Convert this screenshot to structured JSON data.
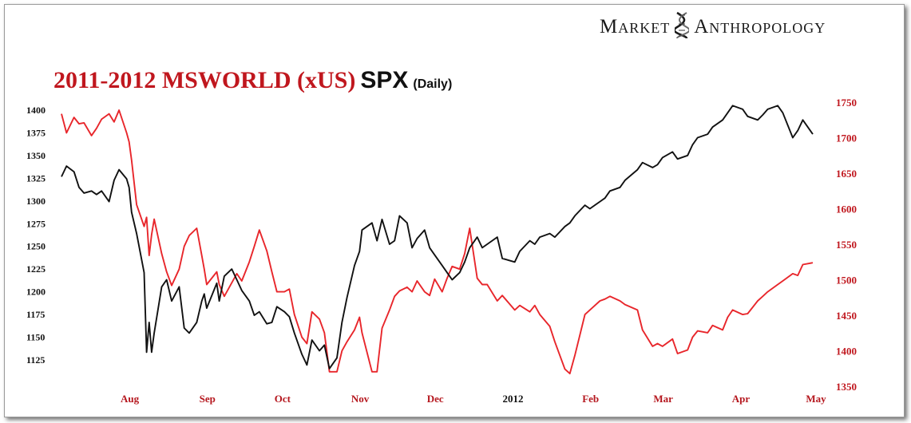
{
  "branding": {
    "word1": "Market",
    "word2": "Anthropology",
    "icon": "dna-helix-icon"
  },
  "title": {
    "red": "2011-2012 MSWORLD (xUS)",
    "black": "SPX",
    "small": "(Daily)"
  },
  "colors": {
    "msworld": "#e8262b",
    "spx": "#111111",
    "accent_red": "#c0171e"
  },
  "chart_data": {
    "type": "line",
    "title": "2011-2012 MSWORLD (xUS) SPX (Daily)",
    "x_range": [
      "2011-07-06",
      "2012-05-01"
    ],
    "x_tick_labels": [
      {
        "label": "Aug",
        "date": "2011-08-01"
      },
      {
        "label": "Sep",
        "date": "2011-09-01"
      },
      {
        "label": "Oct",
        "date": "2011-10-01"
      },
      {
        "label": "Nov",
        "date": "2011-11-01"
      },
      {
        "label": "Dec",
        "date": "2011-12-01"
      },
      {
        "label": "2012",
        "date": "2012-01-01"
      },
      {
        "label": "Feb",
        "date": "2012-02-01"
      },
      {
        "label": "Mar",
        "date": "2012-03-01"
      },
      {
        "label": "Apr",
        "date": "2012-04-01"
      },
      {
        "label": "May",
        "date": "2012-05-01"
      }
    ],
    "y_left": {
      "series": "MSWORLD (xUS)",
      "range": [
        1100,
        1420
      ],
      "ticks": [
        1125,
        1150,
        1175,
        1200,
        1225,
        1250,
        1275,
        1300,
        1325,
        1350,
        1375,
        1400
      ]
    },
    "y_right": {
      "series": "SPX",
      "range": [
        1340,
        1760
      ],
      "ticks": [
        1350,
        1400,
        1450,
        1500,
        1550,
        1600,
        1650,
        1700,
        1750
      ]
    },
    "grid": false,
    "legend": "none",
    "series": [
      {
        "name": "MSWORLD (xUS)",
        "axis": "left",
        "color": "#e8262b",
        "points": [
          [
            "2011-07-06",
            1396
          ],
          [
            "2011-07-08",
            1375
          ],
          [
            "2011-07-11",
            1392
          ],
          [
            "2011-07-13",
            1385
          ],
          [
            "2011-07-15",
            1386
          ],
          [
            "2011-07-18",
            1372
          ],
          [
            "2011-07-20",
            1380
          ],
          [
            "2011-07-22",
            1390
          ],
          [
            "2011-07-25",
            1396
          ],
          [
            "2011-07-27",
            1387
          ],
          [
            "2011-07-29",
            1400
          ],
          [
            "2011-08-01",
            1375
          ],
          [
            "2011-08-02",
            1365
          ],
          [
            "2011-08-03",
            1345
          ],
          [
            "2011-08-05",
            1296
          ],
          [
            "2011-08-08",
            1272
          ],
          [
            "2011-08-09",
            1282
          ],
          [
            "2011-08-10",
            1240
          ],
          [
            "2011-08-11",
            1263
          ],
          [
            "2011-08-12",
            1280
          ],
          [
            "2011-08-15",
            1242
          ],
          [
            "2011-08-17",
            1222
          ],
          [
            "2011-08-19",
            1207
          ],
          [
            "2011-08-22",
            1225
          ],
          [
            "2011-08-24",
            1250
          ],
          [
            "2011-08-26",
            1262
          ],
          [
            "2011-08-29",
            1270
          ],
          [
            "2011-08-31",
            1240
          ],
          [
            "2011-09-01",
            1225
          ],
          [
            "2011-09-02",
            1208
          ],
          [
            "2011-09-06",
            1222
          ],
          [
            "2011-09-07",
            1208
          ],
          [
            "2011-09-09",
            1195
          ],
          [
            "2011-09-12",
            1210
          ],
          [
            "2011-09-14",
            1220
          ],
          [
            "2011-09-16",
            1212
          ],
          [
            "2011-09-19",
            1233
          ],
          [
            "2011-09-21",
            1250
          ],
          [
            "2011-09-23",
            1268
          ],
          [
            "2011-09-26",
            1245
          ],
          [
            "2011-09-28",
            1222
          ],
          [
            "2011-09-30",
            1200
          ],
          [
            "2011-10-03",
            1200
          ],
          [
            "2011-10-05",
            1203
          ],
          [
            "2011-10-07",
            1175
          ],
          [
            "2011-10-10",
            1150
          ],
          [
            "2011-10-12",
            1143
          ],
          [
            "2011-10-14",
            1178
          ],
          [
            "2011-10-17",
            1170
          ],
          [
            "2011-10-19",
            1155
          ],
          [
            "2011-10-21",
            1112
          ],
          [
            "2011-10-24",
            1112
          ],
          [
            "2011-10-26",
            1135
          ],
          [
            "2011-10-28",
            1145
          ],
          [
            "2011-10-31",
            1158
          ],
          [
            "2011-11-02",
            1172
          ],
          [
            "2011-11-03",
            1155
          ],
          [
            "2011-11-07",
            1112
          ],
          [
            "2011-11-09",
            1112
          ],
          [
            "2011-11-11",
            1160
          ],
          [
            "2011-11-14",
            1180
          ],
          [
            "2011-11-16",
            1195
          ],
          [
            "2011-11-18",
            1201
          ],
          [
            "2011-11-21",
            1205
          ],
          [
            "2011-11-23",
            1200
          ],
          [
            "2011-11-25",
            1212
          ],
          [
            "2011-11-28",
            1200
          ],
          [
            "2011-11-30",
            1196
          ],
          [
            "2011-12-02",
            1214
          ],
          [
            "2011-12-05",
            1200
          ],
          [
            "2011-12-07",
            1215
          ],
          [
            "2011-12-09",
            1228
          ],
          [
            "2011-12-12",
            1225
          ],
          [
            "2011-12-14",
            1242
          ],
          [
            "2011-12-16",
            1270
          ],
          [
            "2011-12-19",
            1215
          ],
          [
            "2011-12-21",
            1208
          ],
          [
            "2011-12-23",
            1208
          ],
          [
            "2011-12-27",
            1190
          ],
          [
            "2011-12-29",
            1196
          ],
          [
            "2012-01-03",
            1180
          ],
          [
            "2012-01-05",
            1185
          ],
          [
            "2012-01-09",
            1178
          ],
          [
            "2012-01-11",
            1185
          ],
          [
            "2012-01-13",
            1175
          ],
          [
            "2012-01-17",
            1162
          ],
          [
            "2012-01-19",
            1145
          ],
          [
            "2012-01-23",
            1115
          ],
          [
            "2012-01-25",
            1110
          ],
          [
            "2012-01-27",
            1130
          ],
          [
            "2012-01-31",
            1175
          ],
          [
            "2012-02-02",
            1180
          ],
          [
            "2012-02-06",
            1190
          ],
          [
            "2012-02-08",
            1192
          ],
          [
            "2012-02-10",
            1195
          ],
          [
            "2012-02-14",
            1190
          ],
          [
            "2012-02-16",
            1186
          ],
          [
            "2012-02-21",
            1180
          ],
          [
            "2012-02-23",
            1158
          ],
          [
            "2012-02-27",
            1140
          ],
          [
            "2012-02-29",
            1143
          ],
          [
            "2012-03-02",
            1140
          ],
          [
            "2012-03-06",
            1148
          ],
          [
            "2012-03-08",
            1132
          ],
          [
            "2012-03-12",
            1136
          ],
          [
            "2012-03-14",
            1150
          ],
          [
            "2012-03-16",
            1157
          ],
          [
            "2012-03-20",
            1155
          ],
          [
            "2012-03-22",
            1163
          ],
          [
            "2012-03-26",
            1158
          ],
          [
            "2012-03-28",
            1172
          ],
          [
            "2012-03-30",
            1180
          ],
          [
            "2012-04-03",
            1175
          ],
          [
            "2012-04-05",
            1176
          ],
          [
            "2012-04-09",
            1190
          ],
          [
            "2012-04-11",
            1195
          ],
          [
            "2012-04-13",
            1200
          ],
          [
            "2012-04-17",
            1208
          ],
          [
            "2012-04-19",
            1212
          ],
          [
            "2012-04-23",
            1220
          ],
          [
            "2012-04-25",
            1218
          ],
          [
            "2012-04-27",
            1230
          ],
          [
            "2012-05-01",
            1232
          ]
        ]
      },
      {
        "name": "SPX",
        "axis": "right",
        "color": "#111111",
        "points": [
          [
            "2011-07-06",
            1645
          ],
          [
            "2011-07-08",
            1660
          ],
          [
            "2011-07-11",
            1652
          ],
          [
            "2011-07-13",
            1630
          ],
          [
            "2011-07-15",
            1622
          ],
          [
            "2011-07-18",
            1625
          ],
          [
            "2011-07-20",
            1620
          ],
          [
            "2011-07-22",
            1625
          ],
          [
            "2011-07-25",
            1610
          ],
          [
            "2011-07-27",
            1640
          ],
          [
            "2011-07-29",
            1655
          ],
          [
            "2011-08-01",
            1642
          ],
          [
            "2011-08-02",
            1630
          ],
          [
            "2011-08-03",
            1595
          ],
          [
            "2011-08-05",
            1565
          ],
          [
            "2011-08-08",
            1510
          ],
          [
            "2011-08-09",
            1398
          ],
          [
            "2011-08-10",
            1440
          ],
          [
            "2011-08-11",
            1398
          ],
          [
            "2011-08-12",
            1425
          ],
          [
            "2011-08-15",
            1490
          ],
          [
            "2011-08-17",
            1500
          ],
          [
            "2011-08-19",
            1470
          ],
          [
            "2011-08-22",
            1490
          ],
          [
            "2011-08-24",
            1432
          ],
          [
            "2011-08-26",
            1425
          ],
          [
            "2011-08-29",
            1440
          ],
          [
            "2011-08-31",
            1470
          ],
          [
            "2011-09-01",
            1480
          ],
          [
            "2011-09-02",
            1460
          ],
          [
            "2011-09-06",
            1495
          ],
          [
            "2011-09-07",
            1470
          ],
          [
            "2011-09-09",
            1505
          ],
          [
            "2011-09-12",
            1515
          ],
          [
            "2011-09-14",
            1500
          ],
          [
            "2011-09-16",
            1485
          ],
          [
            "2011-09-19",
            1470
          ],
          [
            "2011-09-21",
            1450
          ],
          [
            "2011-09-23",
            1455
          ],
          [
            "2011-09-26",
            1438
          ],
          [
            "2011-09-28",
            1440
          ],
          [
            "2011-09-30",
            1462
          ],
          [
            "2011-10-03",
            1455
          ],
          [
            "2011-10-05",
            1448
          ],
          [
            "2011-10-07",
            1425
          ],
          [
            "2011-10-10",
            1395
          ],
          [
            "2011-10-12",
            1380
          ],
          [
            "2011-10-14",
            1415
          ],
          [
            "2011-10-17",
            1400
          ],
          [
            "2011-10-19",
            1408
          ],
          [
            "2011-10-21",
            1375
          ],
          [
            "2011-10-24",
            1390
          ],
          [
            "2011-10-26",
            1440
          ],
          [
            "2011-10-28",
            1475
          ],
          [
            "2011-10-31",
            1520
          ],
          [
            "2011-11-02",
            1540
          ],
          [
            "2011-11-03",
            1570
          ],
          [
            "2011-11-07",
            1580
          ],
          [
            "2011-11-09",
            1555
          ],
          [
            "2011-11-11",
            1585
          ],
          [
            "2011-11-14",
            1550
          ],
          [
            "2011-11-16",
            1555
          ],
          [
            "2011-11-18",
            1590
          ],
          [
            "2011-11-21",
            1580
          ],
          [
            "2011-11-23",
            1545
          ],
          [
            "2011-11-25",
            1558
          ],
          [
            "2011-11-28",
            1570
          ],
          [
            "2011-11-30",
            1545
          ],
          [
            "2011-12-02",
            1535
          ],
          [
            "2011-12-05",
            1520
          ],
          [
            "2011-12-07",
            1510
          ],
          [
            "2011-12-09",
            1500
          ],
          [
            "2011-12-12",
            1510
          ],
          [
            "2011-12-14",
            1525
          ],
          [
            "2011-12-16",
            1545
          ],
          [
            "2011-12-19",
            1560
          ],
          [
            "2011-12-21",
            1545
          ],
          [
            "2011-12-23",
            1550
          ],
          [
            "2011-12-27",
            1560
          ],
          [
            "2011-12-29",
            1530
          ],
          [
            "2012-01-03",
            1525
          ],
          [
            "2012-01-05",
            1540
          ],
          [
            "2012-01-09",
            1555
          ],
          [
            "2012-01-11",
            1550
          ],
          [
            "2012-01-13",
            1560
          ],
          [
            "2012-01-17",
            1565
          ],
          [
            "2012-01-19",
            1560
          ],
          [
            "2012-01-23",
            1575
          ],
          [
            "2012-01-25",
            1580
          ],
          [
            "2012-01-27",
            1590
          ],
          [
            "2012-01-31",
            1605
          ],
          [
            "2012-02-02",
            1600
          ],
          [
            "2012-02-06",
            1610
          ],
          [
            "2012-02-08",
            1615
          ],
          [
            "2012-02-10",
            1625
          ],
          [
            "2012-02-14",
            1630
          ],
          [
            "2012-02-16",
            1640
          ],
          [
            "2012-02-21",
            1655
          ],
          [
            "2012-02-23",
            1665
          ],
          [
            "2012-02-27",
            1658
          ],
          [
            "2012-02-29",
            1662
          ],
          [
            "2012-03-02",
            1672
          ],
          [
            "2012-03-06",
            1680
          ],
          [
            "2012-03-08",
            1670
          ],
          [
            "2012-03-12",
            1675
          ],
          [
            "2012-03-14",
            1690
          ],
          [
            "2012-03-16",
            1700
          ],
          [
            "2012-03-20",
            1705
          ],
          [
            "2012-03-22",
            1715
          ],
          [
            "2012-03-26",
            1725
          ],
          [
            "2012-03-28",
            1735
          ],
          [
            "2012-03-30",
            1745
          ],
          [
            "2012-04-03",
            1740
          ],
          [
            "2012-04-05",
            1730
          ],
          [
            "2012-04-09",
            1725
          ],
          [
            "2012-04-11",
            1732
          ],
          [
            "2012-04-13",
            1740
          ],
          [
            "2012-04-17",
            1745
          ],
          [
            "2012-04-19",
            1735
          ],
          [
            "2012-04-23",
            1700
          ],
          [
            "2012-04-25",
            1710
          ],
          [
            "2012-04-27",
            1725
          ],
          [
            "2012-05-01",
            1705
          ]
        ]
      }
    ]
  }
}
